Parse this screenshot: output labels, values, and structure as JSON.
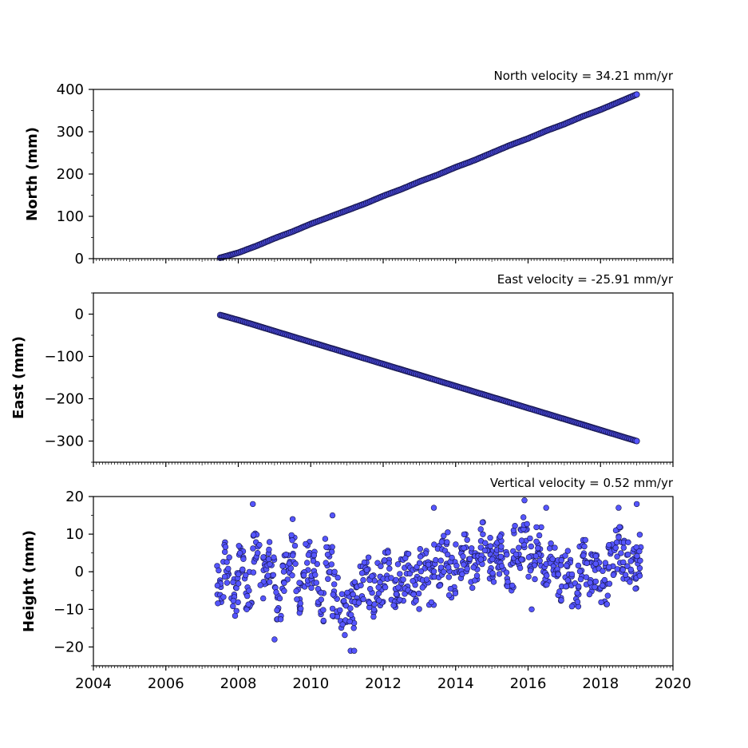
{
  "colors": {
    "marker_fill": "#5555ff",
    "marker_edge": "#14144a",
    "axis": "#000000"
  },
  "chart_data": [
    {
      "type": "scatter",
      "title": "North velocity = 34.21 mm/yr",
      "ylabel": "North (mm)",
      "xlabel": "",
      "xlim": [
        2004,
        2020
      ],
      "ylim": [
        0,
        400
      ],
      "yticks": [
        0,
        100,
        200,
        300,
        400
      ],
      "ytick_labels": [
        "0",
        "100",
        "200",
        "300",
        "400"
      ],
      "xtick_labels_shown": false,
      "series": [
        {
          "x": [
            2007.5,
            2008.0,
            2008.5,
            2009.0,
            2009.5,
            2010.0,
            2010.5,
            2011.0,
            2011.5,
            2012.0,
            2012.5,
            2013.0,
            2013.5,
            2014.0,
            2014.5,
            2015.0,
            2015.5,
            2016.0,
            2016.5,
            2017.0,
            2017.5,
            2018.0,
            2018.5,
            2019.0
          ],
          "y": [
            2,
            14,
            30,
            48,
            64,
            82,
            98,
            114,
            130,
            148,
            164,
            182,
            198,
            216,
            232,
            250,
            268,
            284,
            302,
            318,
            336,
            352,
            370,
            388
          ]
        }
      ]
    },
    {
      "type": "scatter",
      "title": "East velocity = -25.91 mm/yr",
      "ylabel": "East (mm)",
      "xlabel": "",
      "xlim": [
        2004,
        2020
      ],
      "ylim": [
        -350,
        50
      ],
      "yticks": [
        0,
        -100,
        -200,
        -300
      ],
      "ytick_labels": [
        "0",
        "−100",
        "−200",
        "−300"
      ],
      "xtick_labels_shown": false,
      "series": [
        {
          "x": [
            2007.5,
            2008.0,
            2008.5,
            2009.0,
            2009.5,
            2010.0,
            2010.5,
            2011.0,
            2011.5,
            2012.0,
            2012.5,
            2013.0,
            2013.5,
            2014.0,
            2014.5,
            2015.0,
            2015.5,
            2016.0,
            2016.5,
            2017.0,
            2017.5,
            2018.0,
            2018.5,
            2019.0
          ],
          "y": [
            -2,
            -14,
            -27,
            -40,
            -53,
            -66,
            -79,
            -92,
            -105,
            -118,
            -131,
            -144,
            -157,
            -170,
            -183,
            -196,
            -209,
            -222,
            -235,
            -248,
            -261,
            -274,
            -287,
            -300
          ]
        }
      ]
    },
    {
      "type": "scatter",
      "title": "Vertical velocity = 0.52 mm/yr",
      "ylabel": "Height (mm)",
      "xlabel": "",
      "xlim": [
        2004,
        2020
      ],
      "ylim": [
        -25,
        20
      ],
      "yticks": [
        20,
        10,
        0,
        -10,
        -20
      ],
      "ytick_labels": [
        "20",
        "10",
        "0",
        "−10",
        "−20"
      ],
      "xticks": [
        2004,
        2006,
        2008,
        2010,
        2012,
        2014,
        2016,
        2018,
        2020
      ],
      "xtick_labels": [
        "2004",
        "2006",
        "2008",
        "2010",
        "2012",
        "2014",
        "2016",
        "2018",
        "2020"
      ],
      "series": [
        {
          "x": [
            2007.5,
            2007.7,
            2007.9,
            2008.1,
            2008.3,
            2008.5,
            2008.7,
            2008.9,
            2009.1,
            2009.3,
            2009.5,
            2009.7,
            2009.9,
            2010.1,
            2010.3,
            2010.5,
            2010.7,
            2010.9,
            2011.1,
            2011.3,
            2011.5,
            2011.7,
            2011.9,
            2012.1,
            2012.3,
            2012.5,
            2012.7,
            2012.9,
            2013.1,
            2013.3,
            2013.5,
            2013.7,
            2013.9,
            2014.1,
            2014.3,
            2014.5,
            2014.7,
            2014.9,
            2015.1,
            2015.3,
            2015.5,
            2015.7,
            2015.9,
            2016.1,
            2016.3,
            2016.5,
            2016.7,
            2016.9,
            2017.1,
            2017.3,
            2017.5,
            2017.7,
            2017.9,
            2018.1,
            2018.3,
            2018.5,
            2018.7,
            2018.9,
            2019.05,
            2008.4,
            2009.5,
            2010.6,
            2011.1,
            2011.2,
            2013.4,
            2015.9,
            2016.5,
            2018.5,
            2019.0,
            2009.0,
            2016.1
          ],
          "y": [
            -3,
            2,
            -6,
            1,
            -4,
            5,
            -2,
            3,
            -7,
            -1,
            4,
            -5,
            2,
            0,
            -8,
            3,
            -6,
            -11,
            -9,
            -4,
            -2,
            -6,
            -3,
            0,
            -5,
            -2,
            -1,
            -4,
            1,
            -3,
            2,
            5,
            -1,
            3,
            6,
            1,
            8,
            4,
            2,
            5,
            0,
            7,
            9,
            4,
            6,
            1,
            3,
            -2,
            2,
            -4,
            4,
            -1,
            1,
            -3,
            2,
            6,
            3,
            1,
            4,
            18,
            14,
            15,
            -21,
            -21,
            17,
            19,
            17,
            17,
            18,
            -18,
            -10
          ]
        }
      ]
    }
  ]
}
